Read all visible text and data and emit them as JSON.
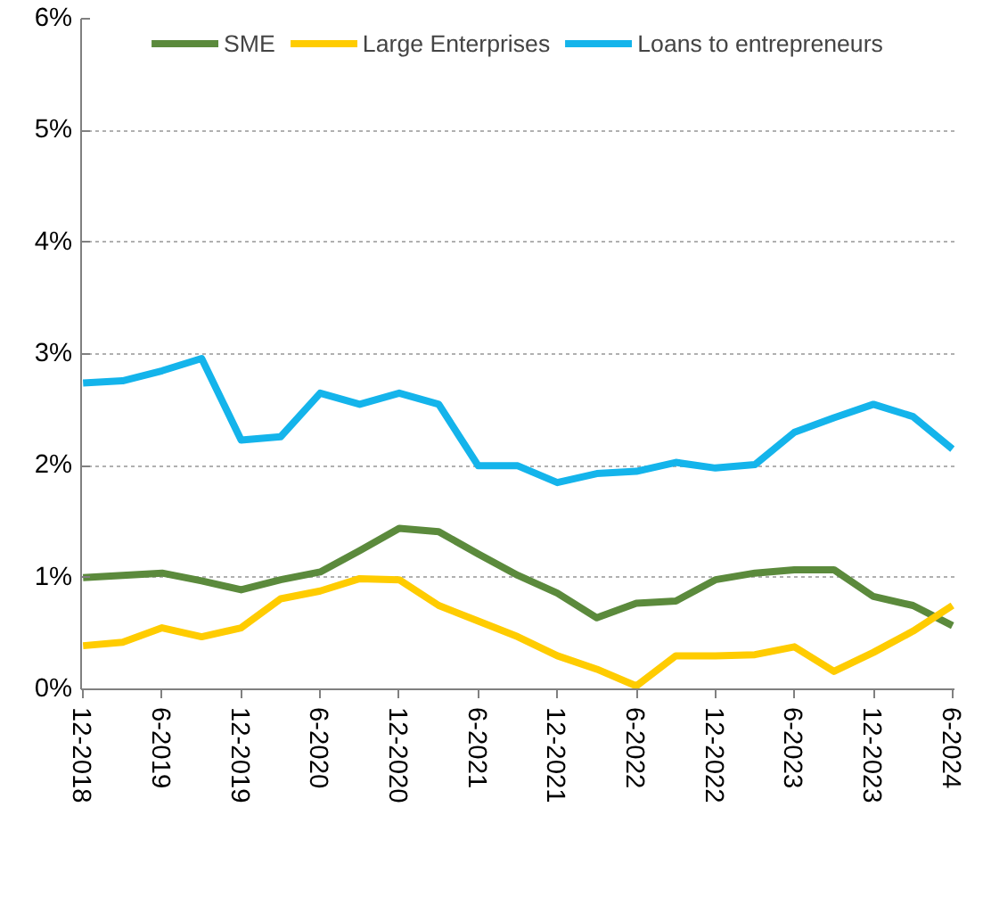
{
  "chart_data": {
    "type": "line",
    "categories": [
      "12-2018",
      null,
      "6-2019",
      null,
      "12-2019",
      null,
      "6-2020",
      null,
      "12-2020",
      null,
      "6-2021",
      null,
      "12-2021",
      null,
      "6-2022",
      null,
      "12-2022",
      null,
      "6-2023",
      null,
      "12-2023",
      null,
      "6-2024"
    ],
    "series": [
      {
        "name": "SME",
        "color": "#5b8a3c",
        "values": [
          1.0,
          1.02,
          1.04,
          0.97,
          0.89,
          0.98,
          1.05,
          1.24,
          1.44,
          1.41,
          1.21,
          1.02,
          0.86,
          0.64,
          0.77,
          0.79,
          0.98,
          1.04,
          1.07,
          1.07,
          0.83,
          0.75,
          0.57
        ]
      },
      {
        "name": "Large Enterprises",
        "color": "#ffcc00",
        "values": [
          0.39,
          0.42,
          0.55,
          0.47,
          0.55,
          0.81,
          0.88,
          0.99,
          0.98,
          0.75,
          0.61,
          0.47,
          0.3,
          0.18,
          0.03,
          0.3,
          0.3,
          0.31,
          0.38,
          0.16,
          0.33,
          0.52,
          0.75
        ]
      },
      {
        "name": "Loans to entrepreneurs",
        "color": "#14b4eb",
        "values": [
          2.74,
          2.76,
          2.85,
          2.96,
          2.23,
          2.26,
          2.65,
          2.55,
          2.65,
          2.55,
          2.0,
          2.0,
          1.85,
          1.93,
          1.95,
          2.03,
          1.98,
          2.01,
          2.3,
          2.43,
          2.55,
          2.44,
          2.15
        ]
      }
    ],
    "ylim": [
      0,
      6
    ],
    "yticks": [
      {
        "value": 0,
        "label": "0%"
      },
      {
        "value": 1,
        "label": "1%"
      },
      {
        "value": 2,
        "label": "2%"
      },
      {
        "value": 3,
        "label": "3%"
      },
      {
        "value": 4,
        "label": "4%"
      },
      {
        "value": 5,
        "label": "5%"
      },
      {
        "value": 6,
        "label": "6%"
      }
    ],
    "grid": "y",
    "legend": "top",
    "line_style": "solid",
    "marker": "none"
  }
}
